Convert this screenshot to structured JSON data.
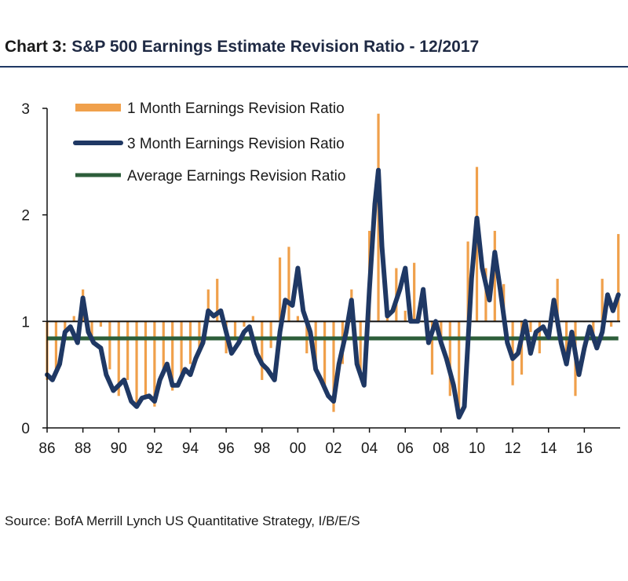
{
  "header": {
    "chart_number": "Chart 3:",
    "title": "S&P 500 Earnings Estimate Revision Ratio - 12/2017"
  },
  "source": "Source: BofA Merrill Lynch US Quantitative Strategy, I/B/E/S",
  "colors": {
    "bars": "#f0a04b",
    "line_3m": "#1f3864",
    "line_avg": "#2d5e3a",
    "title_rule": "#1f3864"
  },
  "chart_data": {
    "type": "line",
    "title": "S&P 500 Earnings Estimate Revision Ratio - 12/2017",
    "xlabel": "",
    "ylabel": "",
    "xlim": [
      1986,
      2018
    ],
    "ylim": [
      0,
      3
    ],
    "baseline": 1,
    "grid": false,
    "legend_position": "top-left",
    "x_ticks": [
      1986,
      1988,
      1990,
      1992,
      1994,
      1996,
      1998,
      2000,
      2002,
      2004,
      2006,
      2008,
      2010,
      2012,
      2014,
      2016
    ],
    "x_tick_labels": [
      "86",
      "88",
      "90",
      "92",
      "94",
      "96",
      "98",
      "00",
      "02",
      "04",
      "06",
      "08",
      "10",
      "12",
      "14",
      "16"
    ],
    "y_ticks": [
      0,
      1,
      2,
      3
    ],
    "y_tick_labels": [
      "0",
      "1",
      "2",
      "3"
    ],
    "series": [
      {
        "name": "1 Month Earnings Revision Ratio",
        "type": "bar",
        "x": [
          1986.0,
          1986.5,
          1987.0,
          1987.5,
          1988.0,
          1988.5,
          1989.0,
          1989.5,
          1990.0,
          1990.5,
          1991.0,
          1991.5,
          1992.0,
          1992.5,
          1993.0,
          1993.5,
          1994.0,
          1994.5,
          1995.0,
          1995.5,
          1996.0,
          1996.5,
          1997.0,
          1997.5,
          1998.0,
          1998.5,
          1999.0,
          1999.5,
          2000.0,
          2000.5,
          2001.0,
          2001.5,
          2002.0,
          2002.5,
          2003.0,
          2003.5,
          2004.0,
          2004.5,
          2005.0,
          2005.5,
          2006.0,
          2006.5,
          2007.0,
          2007.5,
          2008.0,
          2008.5,
          2009.0,
          2009.5,
          2010.0,
          2010.5,
          2011.0,
          2011.5,
          2012.0,
          2012.5,
          2013.0,
          2013.5,
          2014.0,
          2014.5,
          2015.0,
          2015.5,
          2016.0,
          2016.5,
          2017.0,
          2017.5,
          2017.9
        ],
        "values": [
          0.45,
          0.55,
          0.85,
          1.05,
          1.3,
          0.8,
          0.95,
          0.55,
          0.3,
          0.45,
          0.2,
          0.3,
          0.2,
          0.55,
          0.35,
          0.5,
          0.6,
          0.75,
          1.3,
          1.4,
          0.7,
          0.85,
          0.95,
          1.05,
          0.45,
          0.75,
          1.6,
          1.7,
          1.05,
          0.7,
          0.55,
          0.35,
          0.15,
          0.6,
          1.3,
          0.5,
          1.85,
          2.95,
          1.1,
          1.5,
          1.1,
          1.55,
          1.0,
          0.5,
          0.8,
          0.3,
          0.1,
          1.75,
          2.45,
          1.5,
          1.85,
          1.35,
          0.4,
          0.5,
          0.9,
          0.7,
          1.0,
          1.4,
          0.6,
          0.3,
          1.0,
          0.8,
          1.4,
          0.95,
          1.82
        ]
      },
      {
        "name": "3 Month Earnings Revision Ratio",
        "type": "line",
        "x": [
          1986.0,
          1986.3,
          1986.7,
          1987.0,
          1987.3,
          1987.7,
          1988.0,
          1988.3,
          1988.6,
          1989.0,
          1989.3,
          1989.7,
          1990.0,
          1990.3,
          1990.7,
          1991.0,
          1991.3,
          1991.7,
          1992.0,
          1992.3,
          1992.7,
          1993.0,
          1993.3,
          1993.7,
          1994.0,
          1994.3,
          1994.7,
          1995.0,
          1995.3,
          1995.7,
          1996.0,
          1996.3,
          1996.7,
          1997.0,
          1997.3,
          1997.7,
          1998.0,
          1998.3,
          1998.7,
          1999.0,
          1999.3,
          1999.7,
          2000.0,
          2000.3,
          2000.7,
          2001.0,
          2001.3,
          2001.7,
          2002.0,
          2002.3,
          2002.7,
          2003.0,
          2003.3,
          2003.7,
          2004.0,
          2004.3,
          2004.5,
          2004.7,
          2005.0,
          2005.3,
          2005.7,
          2006.0,
          2006.3,
          2006.7,
          2007.0,
          2007.3,
          2007.7,
          2008.0,
          2008.3,
          2008.7,
          2009.0,
          2009.3,
          2009.7,
          2010.0,
          2010.3,
          2010.7,
          2011.0,
          2011.3,
          2011.7,
          2012.0,
          2012.3,
          2012.7,
          2013.0,
          2013.3,
          2013.7,
          2014.0,
          2014.3,
          2014.7,
          2015.0,
          2015.3,
          2015.7,
          2016.0,
          2016.3,
          2016.7,
          2017.0,
          2017.3,
          2017.6,
          2017.9
        ],
        "values": [
          0.5,
          0.45,
          0.6,
          0.9,
          0.95,
          0.8,
          1.22,
          0.9,
          0.8,
          0.75,
          0.5,
          0.35,
          0.4,
          0.45,
          0.25,
          0.2,
          0.28,
          0.3,
          0.25,
          0.45,
          0.6,
          0.4,
          0.4,
          0.55,
          0.5,
          0.65,
          0.8,
          1.1,
          1.05,
          1.1,
          0.9,
          0.7,
          0.8,
          0.9,
          0.95,
          0.7,
          0.6,
          0.55,
          0.45,
          0.9,
          1.2,
          1.15,
          1.5,
          1.1,
          0.9,
          0.55,
          0.45,
          0.3,
          0.25,
          0.6,
          0.9,
          1.2,
          0.6,
          0.4,
          1.3,
          2.1,
          2.42,
          1.7,
          1.05,
          1.1,
          1.3,
          1.5,
          1.0,
          1.0,
          1.3,
          0.8,
          1.0,
          0.8,
          0.65,
          0.4,
          0.1,
          0.2,
          1.4,
          1.97,
          1.5,
          1.2,
          1.65,
          1.3,
          0.8,
          0.65,
          0.7,
          1.0,
          0.7,
          0.9,
          0.95,
          0.85,
          1.2,
          0.8,
          0.6,
          0.9,
          0.5,
          0.75,
          0.95,
          0.75,
          0.9,
          1.25,
          1.1,
          1.25
        ]
      },
      {
        "name": "Average Earnings Revision Ratio",
        "type": "line",
        "x": [
          1986.0,
          2017.9
        ],
        "values": [
          0.84,
          0.84
        ]
      }
    ]
  }
}
